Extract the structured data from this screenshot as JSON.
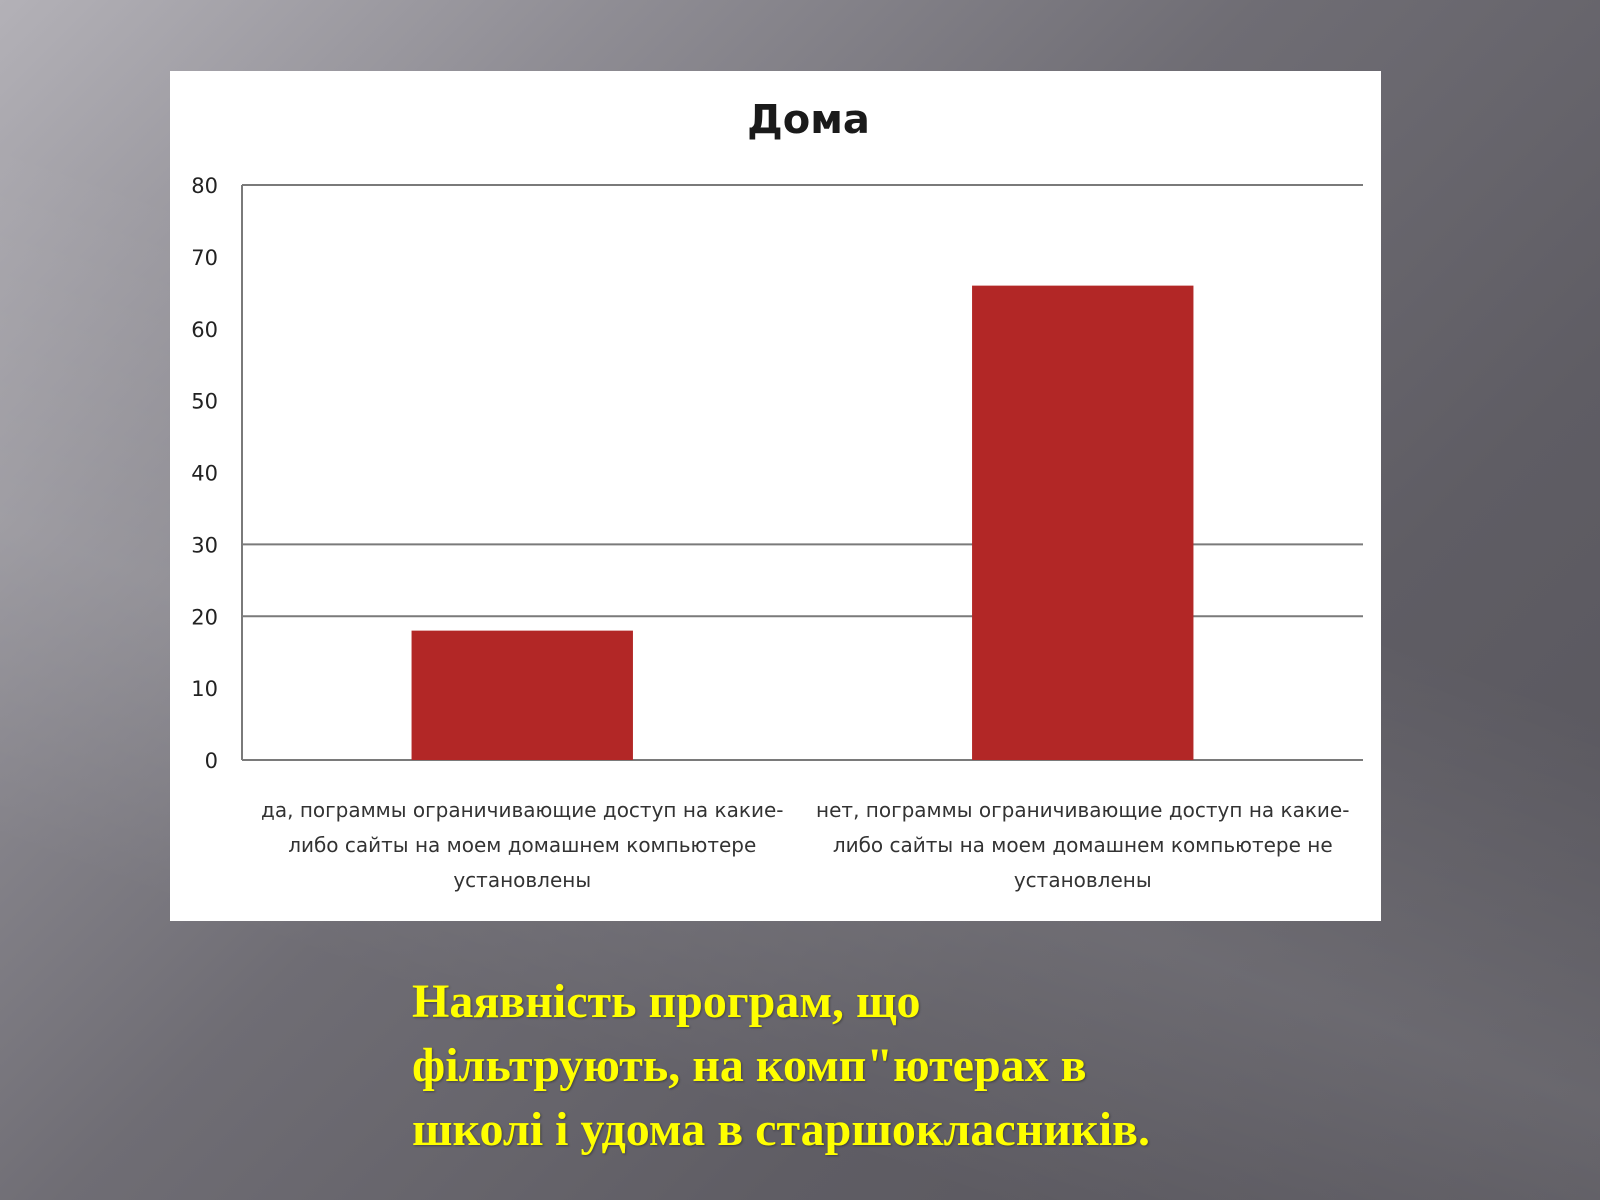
{
  "chart_data": {
    "type": "bar",
    "title": "Дома",
    "categories": [
      [
        "да, пограммы ограничивающие доступ на какие-",
        "либо сайты на моем домашнем компьютере",
        "установлены"
      ],
      [
        "нет, пограммы ограничивающие доступ на какие-",
        "либо сайты на моем домашнем компьютере не",
        "установлены"
      ]
    ],
    "values": [
      18,
      66
    ],
    "ylim": [
      0,
      80
    ],
    "yticks": [
      0,
      10,
      20,
      30,
      40,
      50,
      60,
      70,
      80
    ],
    "gridlines": [
      20,
      30,
      80
    ],
    "bar_color": "#b22726",
    "grid_color": "#7a7a7a",
    "legend": "none"
  },
  "caption": {
    "lines": [
      "Наявність програм, що",
      "фільтрують, на комп\"ютерах в",
      "школі і удома в старшокласників."
    ],
    "color": "#ffff00"
  }
}
